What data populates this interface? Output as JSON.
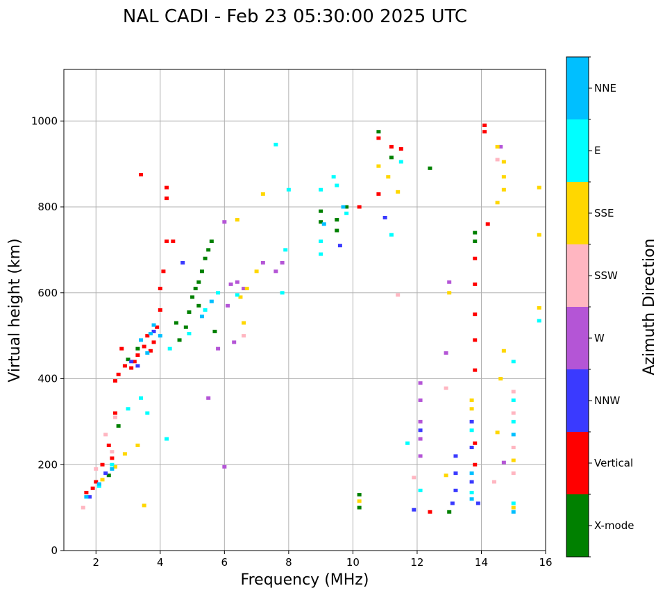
{
  "chart_data": {
    "type": "scatter",
    "title": "NAL CADI - Feb 23 05:30:00 2025 UTC",
    "xlabel": "Frequency (MHz)",
    "ylabel": "Virtual height (km)",
    "xlim": [
      1,
      16
    ],
    "ylim": [
      0,
      1120
    ],
    "xticks": [
      2,
      4,
      6,
      8,
      10,
      12,
      14,
      16
    ],
    "yticks": [
      0,
      200,
      400,
      600,
      800,
      1000
    ],
    "grid": true,
    "colorbar": {
      "label": "Azimuth Direction",
      "categories": [
        "X-mode",
        "Vertical",
        "NNW",
        "W",
        "SSW",
        "SSE",
        "E",
        "NNE"
      ],
      "colors": [
        "#008000",
        "#ff0000",
        "#3a3aff",
        "#b455d6",
        "#ffb6c1",
        "#ffd700",
        "#00ffff",
        "#00bfff"
      ]
    },
    "series": [
      {
        "name": "X-mode",
        "points": [
          [
            2.4,
            175
          ],
          [
            2.7,
            290
          ],
          [
            3.0,
            445
          ],
          [
            4.8,
            520
          ],
          [
            4.9,
            555
          ],
          [
            5.0,
            590
          ],
          [
            5.1,
            610
          ],
          [
            5.2,
            625
          ],
          [
            5.3,
            650
          ],
          [
            5.4,
            680
          ],
          [
            5.5,
            700
          ],
          [
            5.6,
            720
          ],
          [
            4.6,
            490
          ],
          [
            5.7,
            510
          ],
          [
            9.0,
            765
          ],
          [
            9.0,
            790
          ],
          [
            9.5,
            745
          ],
          [
            9.5,
            770
          ],
          [
            9.8,
            800
          ],
          [
            10.2,
            100
          ],
          [
            10.2,
            130
          ],
          [
            10.8,
            975
          ],
          [
            11.2,
            915
          ],
          [
            12.4,
            890
          ],
          [
            13.0,
            90
          ],
          [
            13.8,
            720
          ],
          [
            13.8,
            740
          ],
          [
            3.3,
            470
          ],
          [
            4.5,
            530
          ],
          [
            5.2,
            570
          ]
        ]
      },
      {
        "name": "Vertical",
        "points": [
          [
            1.7,
            135
          ],
          [
            1.9,
            145
          ],
          [
            2.0,
            160
          ],
          [
            2.2,
            200
          ],
          [
            2.4,
            245
          ],
          [
            2.5,
            215
          ],
          [
            2.6,
            320
          ],
          [
            2.7,
            410
          ],
          [
            2.9,
            430
          ],
          [
            3.1,
            425
          ],
          [
            3.2,
            440
          ],
          [
            3.3,
            455
          ],
          [
            3.5,
            475
          ],
          [
            3.6,
            500
          ],
          [
            3.8,
            485
          ],
          [
            3.9,
            520
          ],
          [
            4.0,
            560
          ],
          [
            4.0,
            610
          ],
          [
            4.1,
            650
          ],
          [
            4.2,
            720
          ],
          [
            4.2,
            820
          ],
          [
            4.2,
            845
          ],
          [
            3.7,
            465
          ],
          [
            2.8,
            470
          ],
          [
            2.6,
            395
          ],
          [
            4.4,
            720
          ],
          [
            3.4,
            875
          ],
          [
            10.2,
            800
          ],
          [
            10.8,
            830
          ],
          [
            10.8,
            960
          ],
          [
            11.2,
            940
          ],
          [
            11.5,
            935
          ],
          [
            12.4,
            90
          ],
          [
            13.8,
            420
          ],
          [
            13.8,
            490
          ],
          [
            13.8,
            550
          ],
          [
            13.8,
            620
          ],
          [
            13.8,
            680
          ],
          [
            14.1,
            975
          ],
          [
            14.1,
            990
          ],
          [
            14.2,
            760
          ],
          [
            13.8,
            250
          ],
          [
            13.8,
            200
          ]
        ]
      },
      {
        "name": "NNW",
        "points": [
          [
            1.8,
            125
          ],
          [
            2.3,
            180
          ],
          [
            3.1,
            440
          ],
          [
            3.3,
            430
          ],
          [
            11.0,
            775
          ],
          [
            11.9,
            95
          ],
          [
            12.1,
            280
          ],
          [
            13.1,
            110
          ],
          [
            13.2,
            140
          ],
          [
            13.2,
            180
          ],
          [
            13.2,
            220
          ],
          [
            13.7,
            160
          ],
          [
            13.7,
            240
          ],
          [
            13.7,
            300
          ],
          [
            13.9,
            110
          ],
          [
            9.6,
            710
          ],
          [
            3.8,
            510
          ],
          [
            4.7,
            670
          ]
        ]
      },
      {
        "name": "W",
        "points": [
          [
            5.5,
            355
          ],
          [
            5.8,
            470
          ],
          [
            6.0,
            195
          ],
          [
            6.1,
            570
          ],
          [
            6.2,
            620
          ],
          [
            6.4,
            625
          ],
          [
            6.6,
            610
          ],
          [
            7.2,
            670
          ],
          [
            7.6,
            650
          ],
          [
            7.8,
            670
          ],
          [
            12.1,
            220
          ],
          [
            12.1,
            260
          ],
          [
            12.1,
            300
          ],
          [
            12.1,
            350
          ],
          [
            12.1,
            390
          ],
          [
            12.9,
            460
          ],
          [
            13.0,
            625
          ],
          [
            14.6,
            940
          ],
          [
            14.7,
            205
          ],
          [
            6.3,
            485
          ],
          [
            6.0,
            765
          ]
        ]
      },
      {
        "name": "SSW",
        "points": [
          [
            1.6,
            100
          ],
          [
            2.0,
            190
          ],
          [
            2.3,
            270
          ],
          [
            2.5,
            230
          ],
          [
            2.6,
            310
          ],
          [
            6.6,
            500
          ],
          [
            12.9,
            378
          ],
          [
            14.4,
            160
          ],
          [
            14.5,
            910
          ],
          [
            15.0,
            180
          ],
          [
            15.0,
            240
          ],
          [
            15.0,
            320
          ],
          [
            15.0,
            370
          ],
          [
            11.9,
            170
          ],
          [
            11.4,
            595
          ]
        ]
      },
      {
        "name": "SSE",
        "points": [
          [
            2.2,
            165
          ],
          [
            2.6,
            195
          ],
          [
            2.9,
            225
          ],
          [
            3.3,
            245
          ],
          [
            3.5,
            105
          ],
          [
            6.4,
            770
          ],
          [
            6.5,
            590
          ],
          [
            6.7,
            610
          ],
          [
            6.6,
            530
          ],
          [
            7.0,
            650
          ],
          [
            7.2,
            830
          ],
          [
            10.2,
            115
          ],
          [
            10.8,
            895
          ],
          [
            11.1,
            870
          ],
          [
            11.4,
            835
          ],
          [
            12.9,
            175
          ],
          [
            13.0,
            600
          ],
          [
            13.7,
            330
          ],
          [
            13.7,
            350
          ],
          [
            14.5,
            940
          ],
          [
            14.5,
            275
          ],
          [
            14.6,
            400
          ],
          [
            14.7,
            465
          ],
          [
            14.7,
            870
          ],
          [
            14.7,
            905
          ],
          [
            14.7,
            840
          ],
          [
            15.0,
            210
          ],
          [
            15.0,
            100
          ],
          [
            15.8,
            845
          ],
          [
            15.8,
            735
          ],
          [
            15.8,
            565
          ],
          [
            14.5,
            810
          ]
        ]
      },
      {
        "name": "E",
        "points": [
          [
            2.1,
            150
          ],
          [
            2.5,
            200
          ],
          [
            3.0,
            330
          ],
          [
            3.4,
            355
          ],
          [
            3.6,
            320
          ],
          [
            4.2,
            260
          ],
          [
            4.3,
            470
          ],
          [
            4.9,
            505
          ],
          [
            5.4,
            560
          ],
          [
            5.8,
            600
          ],
          [
            7.8,
            600
          ],
          [
            7.9,
            700
          ],
          [
            8.0,
            840
          ],
          [
            9.0,
            690
          ],
          [
            9.0,
            720
          ],
          [
            9.0,
            840
          ],
          [
            9.4,
            870
          ],
          [
            9.5,
            850
          ],
          [
            9.8,
            785
          ],
          [
            11.2,
            735
          ],
          [
            11.5,
            905
          ],
          [
            11.7,
            250
          ],
          [
            12.1,
            140
          ],
          [
            13.7,
            135
          ],
          [
            13.7,
            280
          ],
          [
            15.0,
            300
          ],
          [
            15.0,
            350
          ],
          [
            15.0,
            440
          ],
          [
            15.0,
            110
          ],
          [
            15.8,
            535
          ],
          [
            7.6,
            945
          ],
          [
            6.4,
            595
          ]
        ]
      },
      {
        "name": "NNE",
        "points": [
          [
            1.7,
            125
          ],
          [
            2.1,
            155
          ],
          [
            2.5,
            190
          ],
          [
            3.4,
            490
          ],
          [
            3.7,
            505
          ],
          [
            3.8,
            525
          ],
          [
            4.0,
            500
          ],
          [
            3.6,
            460
          ],
          [
            5.3,
            545
          ],
          [
            5.6,
            580
          ],
          [
            9.1,
            760
          ],
          [
            9.7,
            800
          ],
          [
            13.7,
            180
          ],
          [
            13.7,
            120
          ],
          [
            15.0,
            90
          ],
          [
            15.0,
            270
          ]
        ]
      }
    ]
  }
}
